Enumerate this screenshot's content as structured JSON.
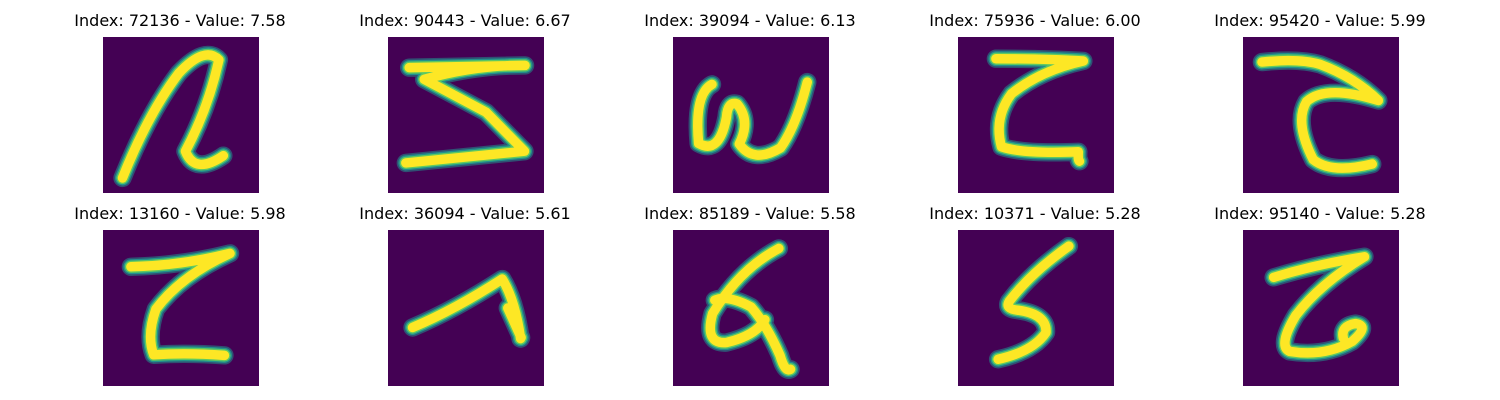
{
  "colors": {
    "background": "#440154",
    "edge": "#21918c",
    "mid": "#5ec962",
    "stroke": "#fde725"
  },
  "panels": [
    {
      "title": "Index: 72136 - Value: 7.58"
    },
    {
      "title": "Index: 90443 - Value: 6.67"
    },
    {
      "title": "Index: 39094 - Value: 6.13"
    },
    {
      "title": "Index: 75936 - Value: 6.00"
    },
    {
      "title": "Index: 95420 - Value: 5.99"
    },
    {
      "title": "Index: 13160 - Value: 5.98"
    },
    {
      "title": "Index: 36094 - Value: 5.61"
    },
    {
      "title": "Index: 85189 - Value: 5.58"
    },
    {
      "title": "Index: 10371 - Value: 5.28"
    },
    {
      "title": "Index: 95140 - Value: 5.28"
    }
  ]
}
